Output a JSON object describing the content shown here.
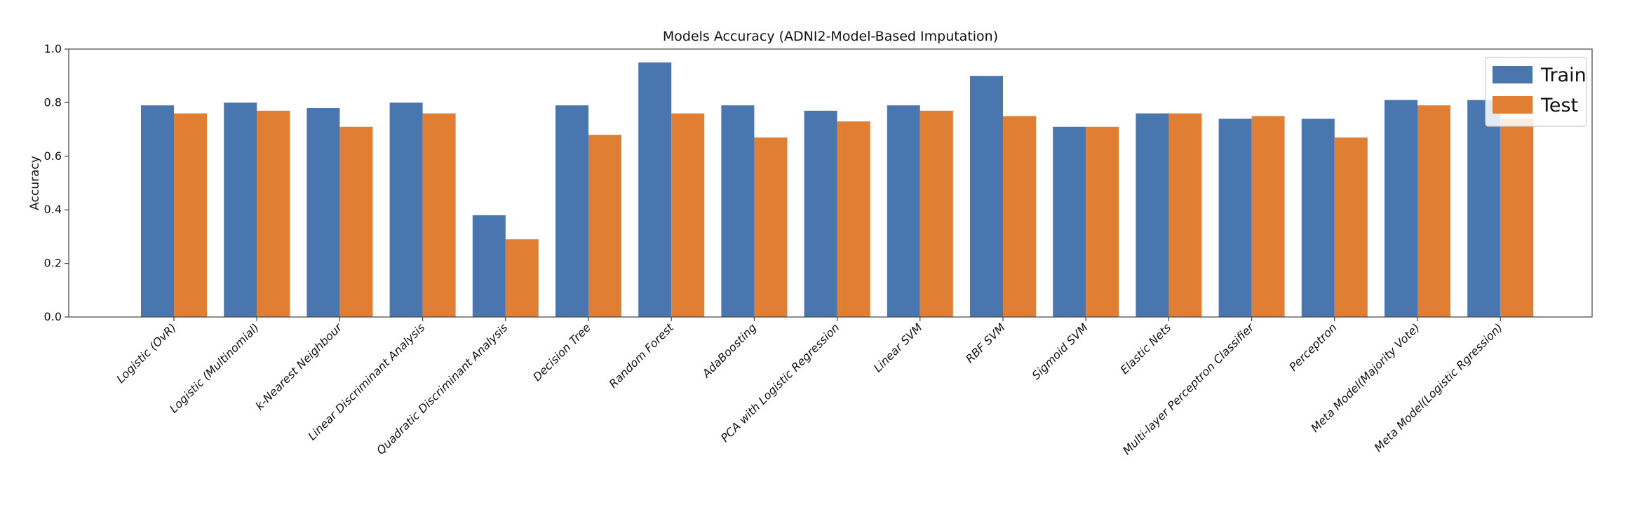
{
  "chart_data": {
    "type": "bar",
    "title": "Models Accuracy (ADNI2-Model-Based Imputation)",
    "xlabel": "",
    "ylabel": "Accuracy",
    "ylim": [
      0,
      1.0
    ],
    "yticks": [
      "0.0",
      "0.2",
      "0.4",
      "0.6",
      "0.8",
      "1.0"
    ],
    "grid": false,
    "legend_position": "top-right",
    "categories": [
      "Logistic (OvR)",
      "Logistic (Multinomial)",
      "k-Nearest Neighbour",
      "Linear Discriminant Analysis",
      "Quadratic Discriminant Analysis",
      "Decision Tree",
      "Random Forest",
      "AdaBoosting",
      "PCA with Logistic Regression",
      "Linear SVM",
      "RBF SVM",
      "Sigmoid SVM",
      "Elastic Nets",
      "Multi-layer Perceptron Classifier",
      "Perceptron",
      "Meta Model(Majority Vote)",
      "Meta Model(Logistic Rgression)"
    ],
    "series": [
      {
        "name": "Train",
        "color": "#4a76b0",
        "values": [
          0.79,
          0.8,
          0.78,
          0.8,
          0.38,
          0.79,
          0.95,
          0.79,
          0.77,
          0.79,
          0.9,
          0.71,
          0.76,
          0.74,
          0.74,
          0.81,
          0.81
        ]
      },
      {
        "name": "Test",
        "color": "#e07e34",
        "values": [
          0.76,
          0.77,
          0.71,
          0.76,
          0.29,
          0.68,
          0.76,
          0.67,
          0.73,
          0.77,
          0.75,
          0.71,
          0.76,
          0.75,
          0.67,
          0.79,
          0.74
        ]
      }
    ]
  }
}
